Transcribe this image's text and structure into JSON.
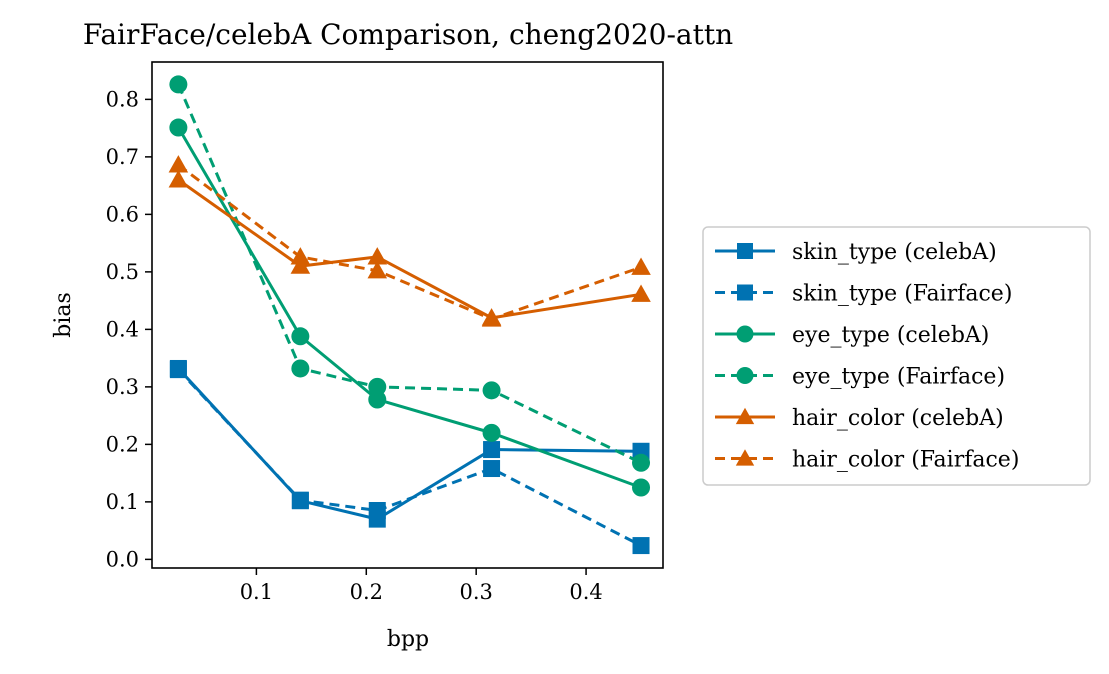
{
  "chart_data": {
    "type": "line",
    "title": "FairFace/celebA Comparison, cheng2020-attn",
    "xlabel": "bpp",
    "ylabel": "bias",
    "xlim": [
      0.005,
      0.47
    ],
    "ylim": [
      -0.015,
      0.865
    ],
    "xticks": [
      0.1,
      0.2,
      0.3,
      0.4
    ],
    "xtick_labels": [
      "0.1",
      "0.2",
      "0.3",
      "0.4"
    ],
    "yticks": [
      0.0,
      0.1,
      0.2,
      0.3,
      0.4,
      0.5,
      0.6,
      0.7,
      0.8
    ],
    "ytick_labels": [
      "0.0",
      "0.1",
      "0.2",
      "0.3",
      "0.4",
      "0.5",
      "0.6",
      "0.7",
      "0.8"
    ],
    "grid": false,
    "legend_position": "right",
    "series": [
      {
        "name": "skin_type (celebA)",
        "color": "#0072b2",
        "line": "solid",
        "marker": "square",
        "x": [
          0.029,
          0.14,
          0.21,
          0.314,
          0.45
        ],
        "y": [
          0.332,
          0.102,
          0.07,
          0.191,
          0.188
        ]
      },
      {
        "name": "skin_type (Fairface)",
        "color": "#0072b2",
        "line": "dashed",
        "marker": "square",
        "x": [
          0.029,
          0.14,
          0.21,
          0.314,
          0.45
        ],
        "y": [
          0.33,
          0.103,
          0.085,
          0.158,
          0.024
        ]
      },
      {
        "name": "eye_type (celebA)",
        "color": "#009e73",
        "line": "solid",
        "marker": "circle",
        "x": [
          0.029,
          0.14,
          0.21,
          0.314,
          0.45
        ],
        "y": [
          0.751,
          0.388,
          0.278,
          0.22,
          0.125
        ]
      },
      {
        "name": "eye_type (Fairface)",
        "color": "#009e73",
        "line": "dashed",
        "marker": "circle",
        "x": [
          0.029,
          0.14,
          0.21,
          0.314,
          0.45
        ],
        "y": [
          0.826,
          0.332,
          0.3,
          0.294,
          0.168
        ]
      },
      {
        "name": "hair_color (celebA)",
        "color": "#d55e00",
        "line": "solid",
        "marker": "triangle",
        "x": [
          0.029,
          0.14,
          0.21,
          0.314,
          0.45
        ],
        "y": [
          0.66,
          0.51,
          0.526,
          0.42,
          0.461
        ]
      },
      {
        "name": "hair_color (Fairface)",
        "color": "#d55e00",
        "line": "dashed",
        "marker": "triangle",
        "x": [
          0.029,
          0.14,
          0.21,
          0.314,
          0.45
        ],
        "y": [
          0.686,
          0.526,
          0.502,
          0.418,
          0.508
        ]
      }
    ]
  }
}
